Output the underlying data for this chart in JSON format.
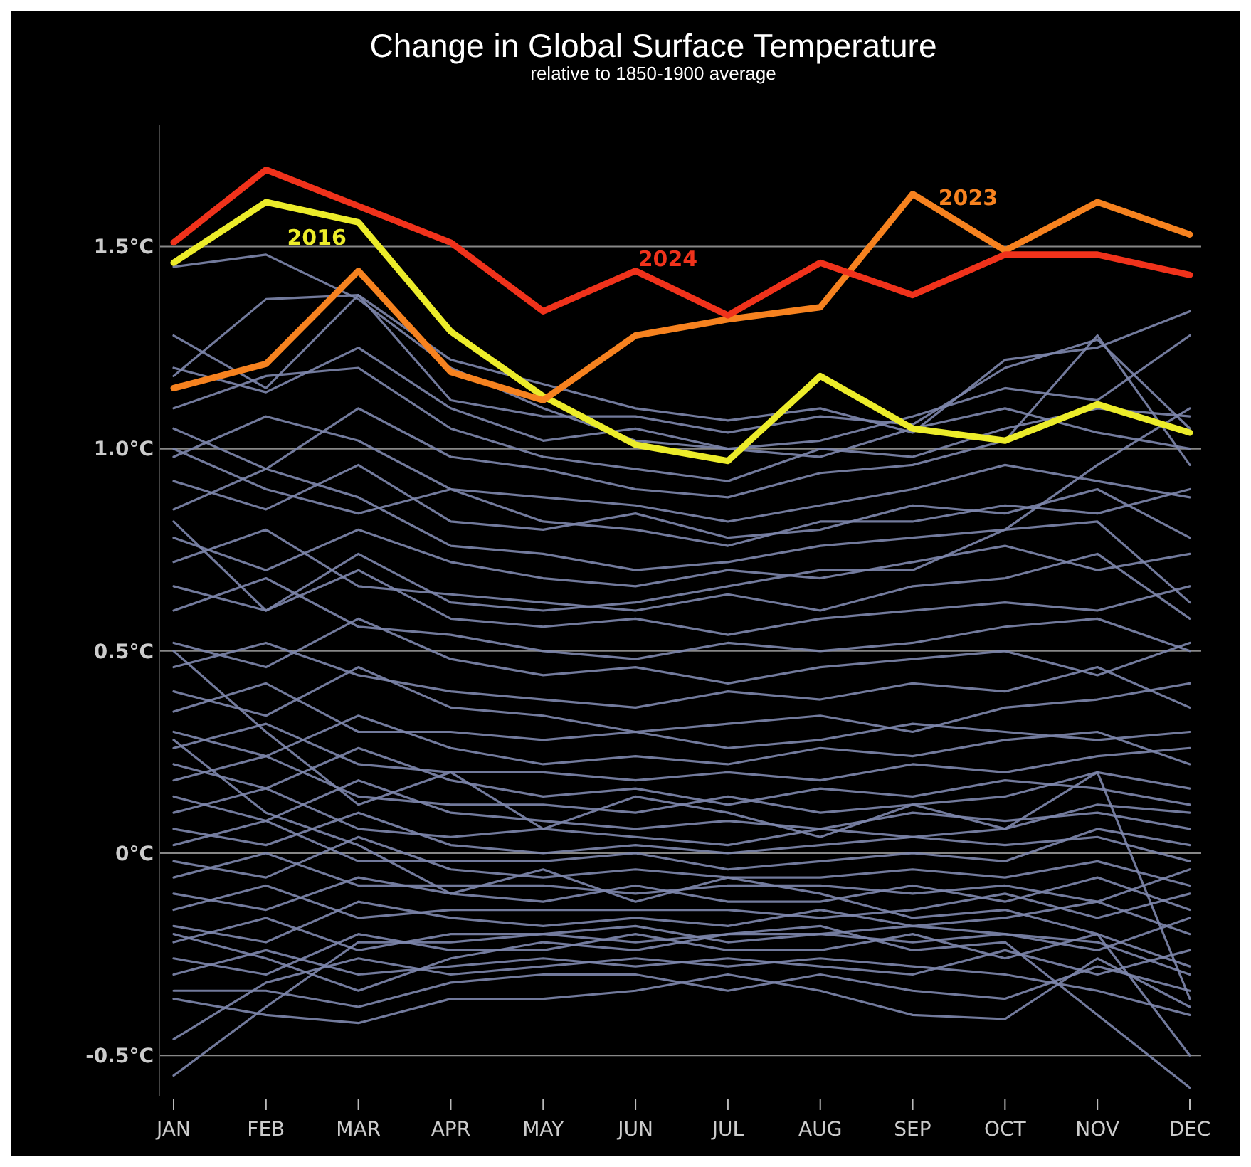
{
  "chart_data": {
    "type": "line",
    "title": "Change in Global Surface Temperature",
    "subtitle": "relative to 1850-1900 average",
    "categories": [
      "JAN",
      "FEB",
      "MAR",
      "APR",
      "MAY",
      "JUN",
      "JUL",
      "AUG",
      "SEP",
      "OCT",
      "NOV",
      "DEC"
    ],
    "ylim": [
      -0.6,
      1.8
    ],
    "yticks": [
      {
        "value": -0.5,
        "label": "-0.5°C"
      },
      {
        "value": 0,
        "label": "0°C"
      },
      {
        "value": 0.5,
        "label": "0.5°C"
      },
      {
        "value": 1,
        "label": "1.0°C"
      },
      {
        "value": 1.5,
        "label": "1.5°C"
      }
    ],
    "grid": "y",
    "series": [
      {
        "color": "#7e87ad",
        "values": [
          1.45,
          1.48,
          1.37,
          1.2,
          1.1,
          1.02,
          1,
          0.98,
          1.05,
          1.1,
          1.04,
          1
        ]
      },
      {
        "color": "#7e87ad",
        "values": [
          1.28,
          1.15,
          1.38,
          1.12,
          1.08,
          1.08,
          1.04,
          1.08,
          1.06,
          1.2,
          1.27,
          1.05
        ]
      },
      {
        "color": "#7e87ad",
        "values": [
          1.18,
          1.37,
          1.38,
          1.22,
          1.16,
          1.1,
          1.07,
          1.1,
          1.04,
          1.22,
          1.25,
          1.34
        ]
      },
      {
        "color": "#7e87ad",
        "values": [
          1.2,
          1.14,
          1.25,
          1.1,
          1.02,
          1.05,
          1,
          1.02,
          1.08,
          1.15,
          1.12,
          1.28
        ]
      },
      {
        "color": "#7e87ad",
        "values": [
          1.1,
          1.18,
          1.2,
          1.05,
          0.98,
          0.95,
          0.92,
          1,
          0.98,
          1.05,
          1.1,
          1.08
        ]
      },
      {
        "color": "#7e87ad",
        "values": [
          1.05,
          0.95,
          1.1,
          0.98,
          0.95,
          0.9,
          0.88,
          0.94,
          0.96,
          1.02,
          1.28,
          0.96
        ]
      },
      {
        "color": "#7e87ad",
        "values": [
          0.98,
          1.08,
          1.02,
          0.9,
          0.88,
          0.86,
          0.82,
          0.86,
          0.9,
          0.96,
          0.92,
          0.88
        ]
      },
      {
        "color": "#7e87ad",
        "values": [
          0.92,
          0.85,
          0.96,
          0.82,
          0.8,
          0.84,
          0.78,
          0.8,
          0.86,
          0.84,
          0.9,
          0.78
        ]
      },
      {
        "color": "#7e87ad",
        "values": [
          0.85,
          0.95,
          0.88,
          0.76,
          0.74,
          0.7,
          0.72,
          0.76,
          0.78,
          0.8,
          0.82,
          0.62
        ]
      },
      {
        "color": "#7e87ad",
        "values": [
          0.78,
          0.7,
          0.8,
          0.72,
          0.68,
          0.66,
          0.7,
          0.68,
          0.72,
          0.76,
          0.7,
          0.74
        ]
      },
      {
        "color": "#7e87ad",
        "values": [
          0.72,
          0.8,
          0.66,
          0.64,
          0.62,
          0.6,
          0.64,
          0.6,
          0.66,
          0.68,
          0.74,
          0.58
        ]
      },
      {
        "color": "#7e87ad",
        "values": [
          0.66,
          0.6,
          0.7,
          0.58,
          0.56,
          0.58,
          0.54,
          0.58,
          0.6,
          0.62,
          0.6,
          0.66
        ]
      },
      {
        "color": "#7e87ad",
        "values": [
          0.6,
          0.68,
          0.56,
          0.54,
          0.5,
          0.48,
          0.52,
          0.5,
          0.52,
          0.56,
          0.58,
          0.5
        ]
      },
      {
        "color": "#7e87ad",
        "values": [
          0.52,
          0.46,
          0.58,
          0.48,
          0.44,
          0.46,
          0.42,
          0.46,
          0.48,
          0.5,
          0.44,
          0.52
        ]
      },
      {
        "color": "#7e87ad",
        "values": [
          0.46,
          0.52,
          0.44,
          0.4,
          0.38,
          0.36,
          0.4,
          0.38,
          0.42,
          0.4,
          0.46,
          0.36
        ]
      },
      {
        "color": "#7e87ad",
        "values": [
          0.4,
          0.34,
          0.46,
          0.36,
          0.34,
          0.3,
          0.32,
          0.34,
          0.3,
          0.36,
          0.38,
          0.42
        ]
      },
      {
        "color": "#7e87ad",
        "values": [
          0.35,
          0.42,
          0.3,
          0.3,
          0.28,
          0.3,
          0.26,
          0.28,
          0.32,
          0.3,
          0.28,
          0.3
        ]
      },
      {
        "color": "#7e87ad",
        "values": [
          0.3,
          0.24,
          0.34,
          0.26,
          0.22,
          0.24,
          0.22,
          0.26,
          0.24,
          0.28,
          0.3,
          0.22
        ]
      },
      {
        "color": "#7e87ad",
        "values": [
          0.26,
          0.32,
          0.22,
          0.2,
          0.2,
          0.18,
          0.2,
          0.18,
          0.22,
          0.2,
          0.24,
          0.26
        ]
      },
      {
        "color": "#7e87ad",
        "values": [
          0.22,
          0.16,
          0.26,
          0.18,
          0.14,
          0.16,
          0.12,
          0.16,
          0.14,
          0.18,
          0.16,
          0.12
        ]
      },
      {
        "color": "#7e87ad",
        "values": [
          0.18,
          0.24,
          0.14,
          0.12,
          0.12,
          0.1,
          0.14,
          0.1,
          0.12,
          0.14,
          0.2,
          0.16
        ]
      },
      {
        "color": "#7e87ad",
        "values": [
          0.14,
          0.08,
          0.18,
          0.1,
          0.08,
          0.06,
          0.08,
          0.06,
          0.1,
          0.08,
          0.1,
          0.06
        ]
      },
      {
        "color": "#7e87ad",
        "values": [
          0.1,
          0.16,
          0.06,
          0.04,
          0.06,
          0.04,
          0.02,
          0.06,
          0.04,
          0.06,
          0.12,
          0.1
        ]
      },
      {
        "color": "#7e87ad",
        "values": [
          0.06,
          0.02,
          0.1,
          0.02,
          0,
          0.02,
          0,
          0.02,
          0.04,
          0.02,
          0.04,
          -0.02
        ]
      },
      {
        "color": "#7e87ad",
        "values": [
          0.02,
          0.08,
          -0.02,
          -0.02,
          -0.02,
          0,
          -0.04,
          -0.02,
          0,
          -0.02,
          0.06,
          0.02
        ]
      },
      {
        "color": "#7e87ad",
        "values": [
          -0.02,
          -0.06,
          0.04,
          -0.04,
          -0.06,
          -0.04,
          -0.06,
          -0.06,
          -0.04,
          -0.06,
          -0.02,
          -0.08
        ]
      },
      {
        "color": "#7e87ad",
        "values": [
          -0.06,
          0,
          -0.08,
          -0.08,
          -0.08,
          -0.1,
          -0.08,
          -0.08,
          -0.1,
          -0.08,
          -0.12,
          -0.04
        ]
      },
      {
        "color": "#7e87ad",
        "values": [
          -0.1,
          -0.14,
          -0.06,
          -0.1,
          -0.12,
          -0.08,
          -0.12,
          -0.12,
          -0.08,
          -0.12,
          -0.06,
          -0.14
        ]
      },
      {
        "color": "#7e87ad",
        "values": [
          -0.14,
          -0.08,
          -0.16,
          -0.14,
          -0.14,
          -0.14,
          -0.14,
          -0.16,
          -0.14,
          -0.1,
          -0.16,
          -0.1
        ]
      },
      {
        "color": "#7e87ad",
        "values": [
          -0.18,
          -0.22,
          -0.12,
          -0.16,
          -0.18,
          -0.16,
          -0.18,
          -0.14,
          -0.18,
          -0.16,
          -0.12,
          -0.2
        ]
      },
      {
        "color": "#7e87ad",
        "values": [
          -0.22,
          -0.16,
          -0.24,
          -0.2,
          -0.2,
          -0.22,
          -0.2,
          -0.2,
          -0.22,
          -0.2,
          -0.24,
          -0.16
        ]
      },
      {
        "color": "#7e87ad",
        "values": [
          -0.26,
          -0.3,
          -0.2,
          -0.24,
          -0.24,
          -0.2,
          -0.24,
          -0.24,
          -0.2,
          -0.26,
          -0.2,
          -0.28
        ]
      },
      {
        "color": "#7e87ad",
        "values": [
          -0.3,
          -0.24,
          -0.3,
          -0.28,
          -0.26,
          -0.28,
          -0.26,
          -0.28,
          -0.3,
          -0.24,
          -0.3,
          -0.24
        ]
      },
      {
        "color": "#7e87ad",
        "values": [
          -0.34,
          -0.34,
          -0.38,
          -0.32,
          -0.3,
          -0.3,
          -0.34,
          -0.3,
          -0.34,
          -0.36,
          -0.28,
          -0.34
        ]
      },
      {
        "color": "#7e87ad",
        "values": [
          -0.36,
          -0.4,
          -0.42,
          -0.36,
          -0.36,
          -0.34,
          -0.3,
          -0.34,
          -0.4,
          -0.41,
          -0.26,
          -0.38
        ]
      },
      {
        "color": "#7e87ad",
        "values": [
          -0.46,
          -0.32,
          -0.26,
          -0.3,
          -0.28,
          -0.26,
          -0.28,
          -0.26,
          -0.28,
          -0.3,
          -0.34,
          -0.4
        ]
      },
      {
        "color": "#7e87ad",
        "values": [
          -0.55,
          -0.38,
          -0.22,
          -0.22,
          -0.2,
          -0.18,
          -0.22,
          -0.2,
          -0.18,
          -0.2,
          -0.22,
          -0.3
        ]
      },
      {
        "color": "#7e87ad",
        "values": [
          -0.2,
          -0.26,
          -0.34,
          -0.26,
          -0.22,
          -0.24,
          -0.2,
          -0.18,
          -0.24,
          -0.22,
          -0.4,
          -0.58
        ]
      },
      {
        "color": "#7e87ad",
        "values": [
          0.28,
          0.1,
          0.02,
          -0.1,
          -0.04,
          -0.12,
          -0.06,
          -0.1,
          -0.16,
          -0.14,
          -0.2,
          -0.5
        ]
      },
      {
        "color": "#7e87ad",
        "values": [
          0.5,
          0.3,
          0.12,
          0.2,
          0.06,
          0.14,
          0.1,
          0.04,
          0.12,
          0.06,
          0.2,
          -0.36
        ]
      },
      {
        "color": "#7e87ad",
        "values": [
          0.82,
          0.6,
          0.74,
          0.62,
          0.6,
          0.62,
          0.66,
          0.7,
          0.7,
          0.8,
          0.96,
          1.1
        ]
      },
      {
        "color": "#7e87ad",
        "values": [
          1,
          0.9,
          0.84,
          0.9,
          0.82,
          0.8,
          0.76,
          0.82,
          0.82,
          0.86,
          0.84,
          0.9
        ]
      },
      {
        "color": "#ecec2a",
        "name": "2016",
        "values": [
          1.46,
          1.61,
          1.56,
          1.29,
          1.13,
          1.01,
          0.97,
          1.18,
          1.05,
          1.02,
          1.11,
          1.04
        ]
      },
      {
        "color": "#f6821f",
        "name": "2023",
        "values": [
          1.15,
          1.21,
          1.44,
          1.19,
          1.12,
          1.28,
          1.32,
          1.35,
          1.63,
          1.49,
          1.61,
          1.53
        ]
      },
      {
        "color": "#f0321b",
        "name": "2024",
        "values": [
          1.51,
          1.69,
          1.6,
          1.51,
          1.34,
          1.44,
          1.33,
          1.46,
          1.38,
          1.48,
          1.48,
          1.43
        ]
      }
    ]
  }
}
